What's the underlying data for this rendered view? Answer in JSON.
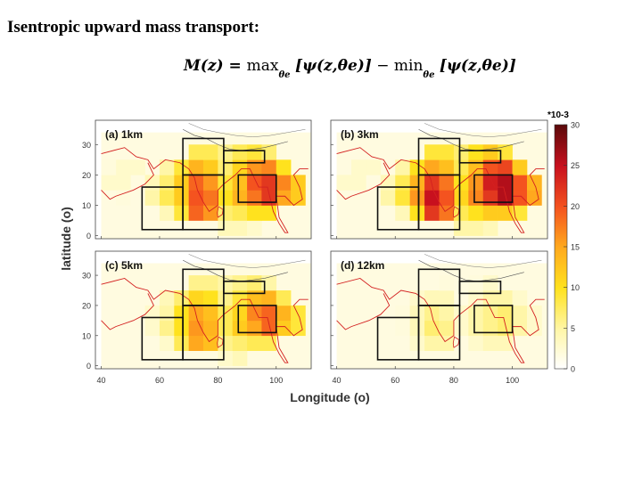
{
  "title": "Isentropic upward mass transport:",
  "formula": {
    "lhs": "M(z) = ",
    "max_op": "max",
    "max_sub": "θe",
    "max_arg": "[ψ(z,θe)]",
    "minus": " − ",
    "min_op": "min",
    "min_sub": "θe",
    "min_arg": "[ψ(z,θe)]"
  },
  "chart_data": {
    "type": "heatmap",
    "xlabel": "Longitude (o)",
    "ylabel": "latitude (o)",
    "x_ticks": [
      40,
      60,
      80,
      100
    ],
    "y_ticks": [
      0,
      10,
      20,
      30
    ],
    "xlim": [
      38,
      112
    ],
    "ylim": [
      -1,
      38
    ],
    "colorbar": {
      "exponent_label": "*10-3",
      "ticks": [
        0,
        5,
        10,
        15,
        20,
        25,
        30
      ],
      "range": [
        0,
        30
      ],
      "colors": [
        "#ffffff",
        "#fff6a8",
        "#ffe21e",
        "#ffa81e",
        "#f4531f",
        "#c8101e",
        "#5a0a0a"
      ]
    },
    "grid_cell_deg": 5,
    "boxes": [
      {
        "lon": [
          54,
          68
        ],
        "lat": [
          2,
          16
        ]
      },
      {
        "lon": [
          68,
          82
        ],
        "lat": [
          2,
          20
        ]
      },
      {
        "lon": [
          68,
          82
        ],
        "lat": [
          20,
          32
        ]
      },
      {
        "lon": [
          82,
          96
        ],
        "lat": [
          24,
          28
        ]
      },
      {
        "lon": [
          87,
          100
        ],
        "lat": [
          11,
          20
        ]
      }
    ],
    "panels": [
      {
        "label": "(a) 1km",
        "cells": [
          [
            80,
            0,
            4
          ],
          [
            85,
            0,
            4
          ],
          [
            90,
            0,
            3
          ],
          [
            60,
            5,
            4
          ],
          [
            65,
            5,
            9
          ],
          [
            70,
            5,
            19
          ],
          [
            75,
            5,
            16
          ],
          [
            80,
            5,
            7
          ],
          [
            85,
            5,
            8
          ],
          [
            90,
            5,
            10
          ],
          [
            95,
            5,
            10
          ],
          [
            55,
            10,
            5
          ],
          [
            60,
            10,
            8
          ],
          [
            65,
            10,
            12
          ],
          [
            70,
            10,
            20
          ],
          [
            75,
            10,
            18
          ],
          [
            80,
            10,
            10
          ],
          [
            85,
            10,
            14
          ],
          [
            90,
            10,
            18
          ],
          [
            95,
            10,
            22
          ],
          [
            100,
            10,
            15
          ],
          [
            105,
            10,
            12
          ],
          [
            55,
            15,
            4
          ],
          [
            60,
            15,
            7
          ],
          [
            65,
            15,
            12
          ],
          [
            70,
            15,
            19
          ],
          [
            75,
            15,
            16
          ],
          [
            80,
            15,
            9
          ],
          [
            85,
            15,
            13
          ],
          [
            90,
            15,
            20
          ],
          [
            95,
            15,
            22
          ],
          [
            100,
            15,
            17
          ],
          [
            105,
            15,
            12
          ],
          [
            60,
            20,
            5
          ],
          [
            65,
            20,
            9
          ],
          [
            70,
            20,
            14
          ],
          [
            75,
            20,
            12
          ],
          [
            80,
            20,
            7
          ],
          [
            85,
            20,
            11
          ],
          [
            90,
            20,
            16
          ],
          [
            95,
            20,
            17
          ],
          [
            100,
            20,
            10
          ],
          [
            70,
            25,
            8
          ],
          [
            75,
            25,
            8
          ],
          [
            80,
            25,
            6
          ],
          [
            85,
            25,
            8
          ],
          [
            90,
            25,
            9
          ],
          [
            95,
            25,
            7
          ],
          [
            40,
            15,
            3
          ],
          [
            45,
            15,
            3
          ],
          [
            45,
            20,
            3
          ],
          [
            50,
            20,
            3
          ],
          [
            40,
            20,
            2
          ],
          [
            45,
            10,
            2
          ]
        ]
      },
      {
        "label": "(b) 3km",
        "cells": [
          [
            80,
            0,
            5
          ],
          [
            85,
            0,
            5
          ],
          [
            90,
            0,
            4
          ],
          [
            60,
            5,
            4
          ],
          [
            65,
            5,
            10
          ],
          [
            70,
            5,
            22
          ],
          [
            75,
            5,
            18
          ],
          [
            80,
            5,
            8
          ],
          [
            85,
            5,
            10
          ],
          [
            90,
            5,
            12
          ],
          [
            95,
            5,
            12
          ],
          [
            100,
            5,
            9
          ],
          [
            55,
            10,
            5
          ],
          [
            60,
            10,
            9
          ],
          [
            65,
            10,
            16
          ],
          [
            70,
            10,
            25
          ],
          [
            75,
            10,
            20
          ],
          [
            80,
            10,
            11
          ],
          [
            85,
            10,
            17
          ],
          [
            90,
            10,
            22
          ],
          [
            95,
            10,
            26
          ],
          [
            100,
            10,
            20
          ],
          [
            105,
            10,
            15
          ],
          [
            55,
            15,
            4
          ],
          [
            60,
            15,
            8
          ],
          [
            65,
            15,
            14
          ],
          [
            70,
            15,
            22
          ],
          [
            75,
            15,
            18
          ],
          [
            80,
            15,
            10
          ],
          [
            85,
            15,
            16
          ],
          [
            90,
            15,
            24
          ],
          [
            95,
            15,
            26
          ],
          [
            100,
            15,
            20
          ],
          [
            105,
            15,
            14
          ],
          [
            60,
            20,
            5
          ],
          [
            65,
            20,
            10
          ],
          [
            70,
            20,
            15
          ],
          [
            75,
            20,
            13
          ],
          [
            80,
            20,
            8
          ],
          [
            85,
            20,
            13
          ],
          [
            90,
            20,
            20
          ],
          [
            95,
            20,
            21
          ],
          [
            100,
            20,
            12
          ],
          [
            70,
            25,
            9
          ],
          [
            75,
            25,
            9
          ],
          [
            80,
            25,
            7
          ],
          [
            85,
            25,
            10
          ],
          [
            90,
            25,
            12
          ],
          [
            95,
            25,
            9
          ],
          [
            40,
            15,
            3
          ],
          [
            45,
            15,
            3
          ],
          [
            45,
            20,
            3
          ],
          [
            50,
            20,
            3
          ]
        ]
      },
      {
        "label": "(c) 5km",
        "cells": [
          [
            80,
            0,
            3
          ],
          [
            85,
            0,
            4
          ],
          [
            60,
            5,
            3
          ],
          [
            65,
            5,
            8
          ],
          [
            70,
            5,
            15
          ],
          [
            75,
            5,
            13
          ],
          [
            80,
            5,
            6
          ],
          [
            85,
            5,
            7
          ],
          [
            90,
            5,
            8
          ],
          [
            95,
            5,
            8
          ],
          [
            55,
            10,
            3
          ],
          [
            60,
            10,
            6
          ],
          [
            65,
            10,
            10
          ],
          [
            70,
            10,
            16
          ],
          [
            75,
            10,
            14
          ],
          [
            80,
            10,
            8
          ],
          [
            85,
            10,
            12
          ],
          [
            90,
            10,
            15
          ],
          [
            95,
            10,
            19
          ],
          [
            100,
            10,
            12
          ],
          [
            105,
            10,
            9
          ],
          [
            55,
            15,
            3
          ],
          [
            60,
            15,
            5
          ],
          [
            65,
            15,
            10
          ],
          [
            70,
            15,
            15
          ],
          [
            75,
            15,
            13
          ],
          [
            80,
            15,
            8
          ],
          [
            85,
            15,
            11
          ],
          [
            90,
            15,
            17
          ],
          [
            95,
            15,
            19
          ],
          [
            100,
            15,
            14
          ],
          [
            105,
            15,
            9
          ],
          [
            60,
            20,
            4
          ],
          [
            65,
            20,
            7
          ],
          [
            70,
            20,
            11
          ],
          [
            75,
            20,
            10
          ],
          [
            80,
            20,
            6
          ],
          [
            85,
            20,
            9
          ],
          [
            90,
            20,
            13
          ],
          [
            95,
            20,
            14
          ],
          [
            100,
            20,
            8
          ],
          [
            70,
            25,
            6
          ],
          [
            75,
            25,
            6
          ],
          [
            80,
            25,
            5
          ],
          [
            85,
            25,
            6
          ],
          [
            90,
            25,
            7
          ],
          [
            95,
            25,
            5
          ]
        ]
      },
      {
        "label": "(d) 12km",
        "cells": [
          [
            65,
            5,
            3
          ],
          [
            70,
            5,
            5
          ],
          [
            75,
            5,
            5
          ],
          [
            85,
            5,
            3
          ],
          [
            90,
            5,
            4
          ],
          [
            95,
            5,
            4
          ],
          [
            60,
            10,
            2
          ],
          [
            65,
            10,
            4
          ],
          [
            70,
            10,
            7
          ],
          [
            75,
            10,
            6
          ],
          [
            80,
            10,
            3
          ],
          [
            85,
            10,
            5
          ],
          [
            90,
            10,
            6
          ],
          [
            95,
            10,
            7
          ],
          [
            100,
            10,
            5
          ],
          [
            105,
            10,
            3
          ],
          [
            60,
            15,
            2
          ],
          [
            65,
            15,
            4
          ],
          [
            70,
            15,
            6
          ],
          [
            75,
            15,
            5
          ],
          [
            80,
            15,
            3
          ],
          [
            85,
            15,
            5
          ],
          [
            90,
            15,
            6
          ],
          [
            95,
            15,
            7
          ],
          [
            100,
            15,
            5
          ],
          [
            105,
            15,
            3
          ],
          [
            65,
            20,
            3
          ],
          [
            70,
            20,
            4
          ],
          [
            75,
            20,
            4
          ],
          [
            85,
            20,
            3
          ],
          [
            90,
            20,
            5
          ],
          [
            95,
            20,
            5
          ],
          [
            100,
            20,
            3
          ],
          [
            75,
            25,
            2
          ],
          [
            85,
            25,
            2
          ],
          [
            90,
            25,
            3
          ]
        ]
      }
    ]
  }
}
